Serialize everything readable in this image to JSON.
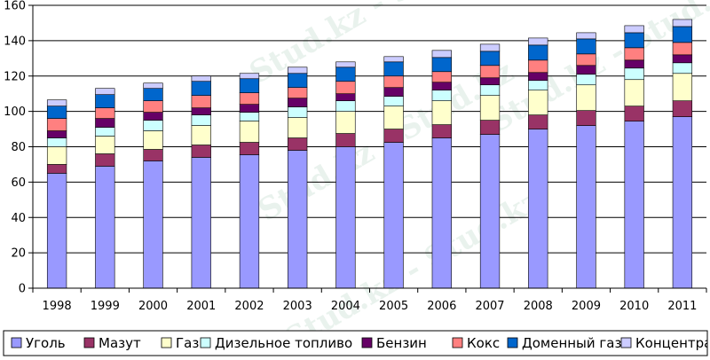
{
  "chart_data": {
    "type": "bar",
    "stacked": true,
    "title": "",
    "xlabel": "",
    "ylabel": "",
    "ylim": [
      0,
      160
    ],
    "yticks": [
      0,
      20,
      40,
      60,
      80,
      100,
      120,
      140,
      160
    ],
    "grid": true,
    "legend_position": "bottom",
    "categories": [
      "1998",
      "1999",
      "2000",
      "2001",
      "2002",
      "2003",
      "2004",
      "2005",
      "2006",
      "2007",
      "2008",
      "2009",
      "2010",
      "2011"
    ],
    "series": [
      {
        "name": "Уголь",
        "color": "#9999ff",
        "values": [
          65,
          69,
          72,
          74,
          75.5,
          78,
          80,
          82.5,
          85,
          87,
          90,
          92,
          94.5,
          97
        ]
      },
      {
        "name": "Мазут",
        "color": "#993366",
        "values": [
          5,
          7,
          6.5,
          7,
          7,
          7,
          7.5,
          7.5,
          7.5,
          8,
          8,
          8.5,
          8.5,
          9
        ]
      },
      {
        "name": "Газ",
        "color": "#ffffcc",
        "values": [
          10,
          10,
          10.5,
          11,
          12,
          11.5,
          12.5,
          13,
          13.5,
          14,
          14,
          14.5,
          15,
          15.5
        ]
      },
      {
        "name": "Дизельное топливо",
        "color": "#ccffff",
        "values": [
          5,
          5,
          6,
          6,
          5,
          6,
          6,
          5.5,
          6,
          6,
          5.5,
          6,
          6.5,
          6
        ]
      },
      {
        "name": "Бензин",
        "color": "#660066",
        "values": [
          4,
          5,
          4.5,
          4,
          4.5,
          5,
          4,
          5,
          4.5,
          4,
          4.5,
          5,
          4.5,
          4.5
        ]
      },
      {
        "name": "Кокс",
        "color": "#ff8080",
        "values": [
          7,
          6,
          6.5,
          7,
          6.5,
          6,
          7,
          6.5,
          6,
          7,
          7,
          6.5,
          7,
          7
        ]
      },
      {
        "name": "Доменный газ",
        "color": "#0066cc",
        "values": [
          7,
          7.5,
          7,
          8,
          8,
          8,
          8,
          8,
          8,
          8,
          8.5,
          8.5,
          8.5,
          9
        ]
      },
      {
        "name": "Концентрат",
        "color": "#ccccff",
        "values": [
          3.5,
          3.5,
          3,
          3,
          3,
          3.5,
          3,
          3,
          4,
          4,
          4,
          3.5,
          4,
          4
        ]
      }
    ]
  },
  "watermark": {
    "text": "Stud.kz - Stud.kz"
  }
}
